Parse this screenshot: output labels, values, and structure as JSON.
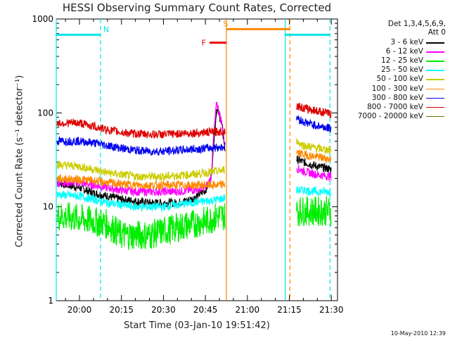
{
  "chart_data": {
    "type": "line",
    "title": "HESSI Observing Summary Count Rates, Corrected",
    "xlabel": "Start Time (03-Jan-10 19:51:42)",
    "ylabel": "Corrected Count Rate (s⁻¹ detector⁻¹)",
    "y_scale": "log",
    "ylim": [
      1,
      1000
    ],
    "xlim_minutes": [
      1191.7,
      1292.2
    ],
    "x_tick_labels": [
      "20:00",
      "20:15",
      "20:30",
      "20:45",
      "21:00",
      "21:15",
      "21:30"
    ],
    "y_tick_labels": [
      "1",
      "10",
      "100",
      "1000"
    ],
    "legend_header": [
      "Det 1,3,4,5,6,9,",
      "Att 0"
    ],
    "timestamp": "10-May-2010 12:39",
    "series": [
      {
        "name": "3 - 6 keV",
        "color": "#000000",
        "x": [
          1192,
          1200,
          1205,
          1210,
          1215,
          1220,
          1225,
          1230,
          1235,
          1240,
          1245,
          1247,
          1248,
          1249,
          1250,
          1251,
          1252,
          1263,
          1268,
          1276,
          1277.5,
          1280,
          1285,
          1290
        ],
        "y": [
          18,
          16,
          14,
          13,
          12,
          11.5,
          11,
          11,
          11,
          12,
          15,
          20,
          50,
          110,
          95,
          70,
          40,
          null,
          null,
          null,
          32,
          30,
          27,
          25
        ]
      },
      {
        "name": "6 - 12 keV",
        "color": "#ff00ff",
        "x": [
          1192,
          1200,
          1205,
          1210,
          1215,
          1220,
          1225,
          1230,
          1235,
          1240,
          1245,
          1247,
          1248,
          1249,
          1250,
          1251,
          1252,
          1263,
          1268,
          1276,
          1277.5,
          1280,
          1285,
          1290
        ],
        "y": [
          18,
          18,
          17,
          16,
          15,
          14.5,
          14.5,
          14.5,
          14.5,
          15,
          16,
          20,
          60,
          130,
          100,
          75,
          45,
          null,
          null,
          null,
          26,
          24,
          22,
          21
        ]
      },
      {
        "name": "12 - 25 keV",
        "color": "#00ee00",
        "x": [
          1192,
          1200,
          1205,
          1210,
          1215,
          1220,
          1225,
          1230,
          1235,
          1240,
          1245,
          1250,
          1252,
          1263,
          1268,
          1276,
          1277.5,
          1280,
          1285,
          1290
        ],
        "y": [
          8,
          7.5,
          7,
          6.5,
          5,
          5,
          5,
          5.5,
          6,
          6.5,
          7,
          8,
          8,
          null,
          null,
          null,
          9,
          9,
          9,
          9
        ]
      },
      {
        "name": "25 - 50 keV",
        "color": "#00ffff",
        "x": [
          1192,
          1200,
          1205,
          1210,
          1215,
          1220,
          1225,
          1230,
          1235,
          1240,
          1245,
          1250,
          1252,
          1263,
          1268,
          1276,
          1277.5,
          1280,
          1285,
          1290
        ],
        "y": [
          13.5,
          13,
          12,
          11,
          10.5,
          10,
          10,
          10,
          10.5,
          11,
          11.5,
          12,
          12.5,
          null,
          null,
          null,
          15,
          15,
          14.5,
          14.5
        ]
      },
      {
        "name": "50 - 100 keV",
        "color": "#cccc00",
        "x": [
          1192,
          1200,
          1205,
          1210,
          1215,
          1220,
          1225,
          1230,
          1235,
          1240,
          1245,
          1250,
          1252,
          1263,
          1268,
          1276,
          1277.5,
          1280,
          1285,
          1290
        ],
        "y": [
          28,
          27,
          25,
          23,
          22,
          21,
          21,
          21,
          21.5,
          22,
          23,
          24,
          25,
          null,
          null,
          null,
          50,
          45,
          42,
          40
        ]
      },
      {
        "name": "100 - 300 keV",
        "color": "#ff8800",
        "x": [
          1192,
          1200,
          1205,
          1210,
          1215,
          1220,
          1225,
          1230,
          1235,
          1240,
          1245,
          1250,
          1252,
          1263,
          1268,
          1276,
          1277.5,
          1280,
          1285,
          1290
        ],
        "y": [
          20,
          19.5,
          19,
          18,
          17.5,
          17,
          17,
          17,
          17,
          17,
          17,
          17,
          17.5,
          null,
          null,
          null,
          38,
          36,
          34,
          32
        ]
      },
      {
        "name": "300 - 800 keV",
        "color": "#0000ee",
        "x": [
          1192,
          1200,
          1205,
          1210,
          1215,
          1220,
          1225,
          1230,
          1235,
          1240,
          1245,
          1250,
          1252,
          1263,
          1268,
          1276,
          1277.5,
          1280,
          1285,
          1290
        ],
        "y": [
          50,
          50,
          48,
          45,
          42,
          40,
          39,
          39,
          40,
          41,
          42,
          43,
          44,
          null,
          null,
          null,
          90,
          80,
          73,
          68
        ]
      },
      {
        "name": "800 - 7000 keV",
        "color": "#dd0000",
        "x": [
          1192,
          1200,
          1205,
          1210,
          1215,
          1220,
          1225,
          1230,
          1235,
          1240,
          1245,
          1250,
          1252,
          1263,
          1268,
          1276,
          1277.5,
          1280,
          1285,
          1290
        ],
        "y": [
          78,
          78,
          72,
          66,
          62,
          60,
          59,
          59,
          60,
          61,
          62,
          63,
          64,
          null,
          null,
          null,
          120,
          112,
          105,
          97
        ]
      },
      {
        "name": "7000 - 20000 keV",
        "color": "#667700",
        "x": [],
        "y": []
      }
    ],
    "state_bars": [
      {
        "label": "N",
        "color": "#00e5e5",
        "segments": [
          [
            1191.7,
            1207.5
          ],
          [
            1273.5,
            1289.5
          ]
        ],
        "level": 680,
        "label_x": 1208.5
      },
      {
        "label": "F",
        "color": "#ee0000",
        "segments": [
          [
            1246.5,
            1252.5
          ]
        ],
        "level": 560,
        "label_x": 1245.2
      },
      {
        "label": "S",
        "color": "#ff8800",
        "segments": [
          [
            1252.5,
            1275.2
          ]
        ],
        "level": 780,
        "label_x": 1251.3
      }
    ],
    "state_lines": [
      {
        "color": "#00e5e5",
        "style": "dashed",
        "x": 1207.5
      },
      {
        "color": "#00e5e5",
        "style": "solid",
        "x": 1191.7
      },
      {
        "color": "#ff8800",
        "style": "solid",
        "x": 1252.5
      },
      {
        "color": "#00e5e5",
        "style": "solid",
        "x": 1273.5
      },
      {
        "color": "#ff8800",
        "style": "dashed",
        "x": 1275.2
      },
      {
        "color": "#00e5e5",
        "style": "dashed",
        "x": 1289.5
      }
    ]
  }
}
